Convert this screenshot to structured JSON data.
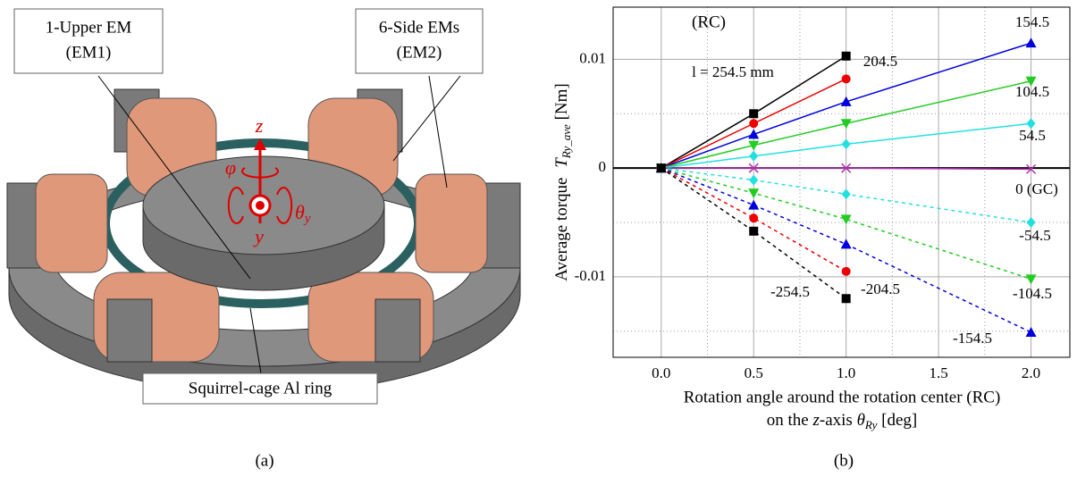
{
  "diagram": {
    "upper_em": "1-Upper EM",
    "upper_em_id": "(EM1)",
    "side_ems": "6-Side EMs",
    "side_ems_id": "(EM2)",
    "ring": "Squirrel-cage Al ring",
    "axis_z": "z",
    "axis_phi": "φ",
    "axis_theta": "θ",
    "axis_theta_sub": "y",
    "axis_y": "y",
    "caption": "(a)"
  },
  "chart_data": {
    "type": "line",
    "caption": "(b)",
    "annotation": "(RC)",
    "ylabel": {
      "text": "Average torque",
      "symbol": "T",
      "sub": "Ry_ave",
      "unit": "[Nm]"
    },
    "xlabel": {
      "line1": "Rotation angle around the rotation center (RC)",
      "pre": "on the",
      "axis": "z",
      "mid": "-axis",
      "symbol": "θ",
      "sub": "Ry",
      "unit": "[deg]"
    },
    "x": [
      0,
      0.5,
      1,
      2
    ],
    "xlim": [
      -0.26,
      2.21
    ],
    "xticks": [
      {
        "value": 0,
        "label": "0.0"
      },
      0.5,
      {
        "value": 1,
        "label": "1.0"
      },
      1.5,
      {
        "value": 2,
        "label": "2.0"
      }
    ],
    "xminorticks": [
      0.25,
      0.75,
      1.25,
      1.75
    ],
    "ylim": [
      -0.0174,
      0.0148
    ],
    "yticks": [
      -0.01,
      0,
      0.01
    ],
    "yminorticks": [
      -0.015,
      -0.005,
      0.005
    ],
    "grid": true,
    "series": [
      {
        "name": "l = 254.5 mm",
        "color": "#000000",
        "marker": "square",
        "dashed": false,
        "values": [
          0,
          0.005,
          0.0103,
          null
        ]
      },
      {
        "name": "204.5",
        "color": "#ee0000",
        "marker": "circle",
        "dashed": false,
        "values": [
          0,
          0.0041,
          0.0082,
          null
        ]
      },
      {
        "name": "154.5",
        "color": "#0000dd",
        "marker": "triangle-up",
        "dashed": false,
        "values": [
          0,
          0.0031,
          0.0061,
          0.0115
        ]
      },
      {
        "name": "104.5",
        "color": "#22cc22",
        "marker": "triangle-down",
        "dashed": false,
        "values": [
          0,
          0.0021,
          0.0041,
          0.008
        ]
      },
      {
        "name": "54.5",
        "color": "#22e0e0",
        "marker": "diamond",
        "dashed": false,
        "values": [
          0,
          0.0011,
          0.0022,
          0.0041
        ]
      },
      {
        "name": "0 (GC)",
        "color": "#b030b0",
        "marker": "x",
        "dashed": false,
        "values": [
          0,
          0,
          0,
          -0.0001
        ]
      },
      {
        "name": "-54.5",
        "color": "#22e0e0",
        "marker": "diamond",
        "dashed": true,
        "values": [
          0,
          -0.0011,
          -0.0024,
          -0.005
        ]
      },
      {
        "name": "-104.5",
        "color": "#22cc22",
        "marker": "triangle-down",
        "dashed": true,
        "values": [
          0,
          -0.0023,
          -0.0047,
          -0.0102
        ]
      },
      {
        "name": "-154.5",
        "color": "#0000dd",
        "marker": "triangle-up",
        "dashed": true,
        "values": [
          0,
          -0.0034,
          -0.007,
          -0.0151
        ]
      },
      {
        "name": "-204.5",
        "color": "#ee0000",
        "marker": "circle",
        "dashed": true,
        "values": [
          0,
          -0.0046,
          -0.0095,
          null
        ]
      },
      {
        "name": "-254.5",
        "color": "#000000",
        "marker": "square",
        "dashed": true,
        "values": [
          0,
          -0.0058,
          -0.012,
          null
        ]
      }
    ]
  }
}
